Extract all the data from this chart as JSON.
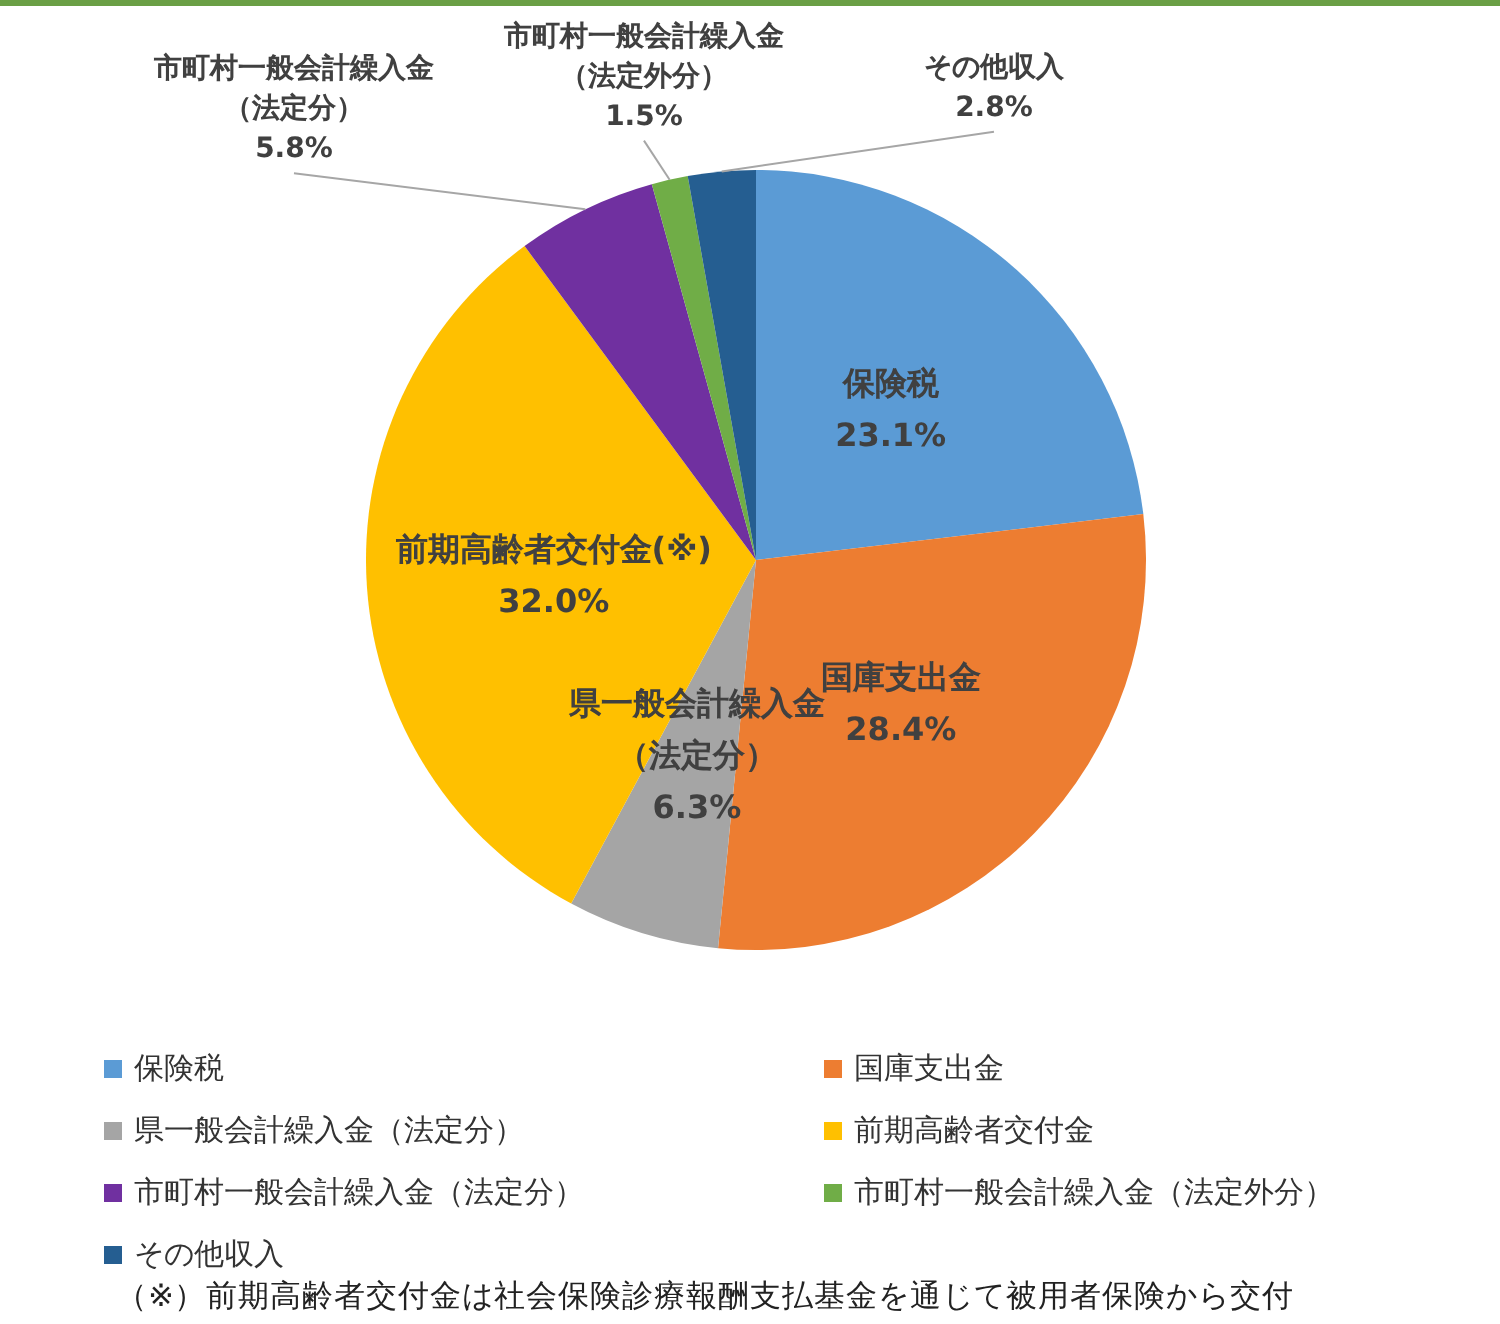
{
  "chart_data": {
    "type": "pie",
    "categories": [
      "保険税",
      "国庫支出金",
      "県一般会計繰入金（法定分）",
      "前期高齢者交付金",
      "市町村一般会計繰入金（法定分）",
      "市町村一般会計繰入金（法定外分）",
      "その他収入"
    ],
    "values": [
      23.1,
      28.4,
      6.3,
      32.0,
      5.8,
      1.5,
      2.8
    ],
    "colors": [
      "#5b9bd5",
      "#ed7d31",
      "#a5a5a5",
      "#ffc000",
      "#7030a0",
      "#70ad47",
      "#255e91"
    ],
    "value_labels": [
      "保険税\n23.1%",
      "国庫支出金\n28.4%",
      "県一般会計繰入金（法定分）\n6.3%",
      "前期高齢者交付金(※)\n32.0%",
      "市町村一般会計繰入金（法定分）\n5.8%",
      "市町村一般会計繰入金（法定外分）\n1.5%",
      "その他収入\n2.8%"
    ],
    "legend": "bottom",
    "annotations": [
      "（※）前期高齢者交付金は社会保険診療報酬支払基金を通じて被用者保険から交付"
    ]
  }
}
